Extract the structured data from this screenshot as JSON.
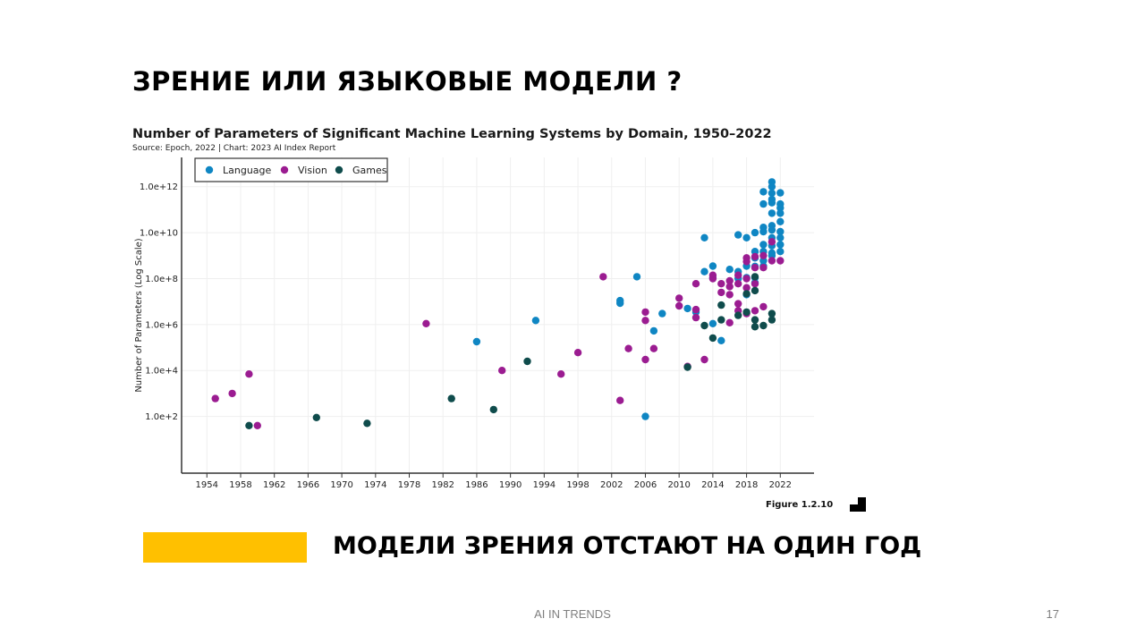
{
  "slide": {
    "title": "ЗРЕНИЕ ИЛИ ЯЗЫКОВЫЕ МОДЕЛИ ?",
    "subtitle": "МОДЕЛИ ЗРЕНИЯ ОТСТАЮТ НА ОДИН ГОД",
    "footer": "AI IN TRENDS",
    "page_number": "17",
    "accent_color": "#FFC000"
  },
  "chart_data": {
    "type": "scatter",
    "title": "Number of Parameters of Significant Machine Learning Systems by Domain, 1950–2022",
    "source": "Source: Epoch, 2022 | Chart: 2023 AI Index Report",
    "ylabel": "Number of Parameters (Log Scale)",
    "xlabel": "",
    "figure_label": "Figure 1.2.10",
    "y_scale": "log",
    "xlim": [
      1951,
      2026
    ],
    "ylim": [
      1,
      10000000000000
    ],
    "grid": true,
    "legend_position": "top-left",
    "x_ticks": [
      1954,
      1958,
      1962,
      1966,
      1970,
      1974,
      1978,
      1982,
      1986,
      1990,
      1994,
      1998,
      2002,
      2006,
      2010,
      2014,
      2018,
      2022
    ],
    "y_ticks": [
      {
        "value": 100,
        "label": "1.0e+2"
      },
      {
        "value": 10000,
        "label": "1.0e+4"
      },
      {
        "value": 1000000,
        "label": "1.0e+6"
      },
      {
        "value": 100000000,
        "label": "1.0e+8"
      },
      {
        "value": 10000000000,
        "label": "1.0e+10"
      },
      {
        "value": 1000000000000,
        "label": "1.0e+12"
      }
    ],
    "series": [
      {
        "name": "Language",
        "color": "#0F86C3",
        "points": [
          {
            "x": 1986,
            "y": 180000
          },
          {
            "x": 1993,
            "y": 1500000
          },
          {
            "x": 2003,
            "y": 11000000
          },
          {
            "x": 2003,
            "y": 8500000
          },
          {
            "x": 2005,
            "y": 120000000
          },
          {
            "x": 2006,
            "y": 100
          },
          {
            "x": 2007,
            "y": 530000
          },
          {
            "x": 2008,
            "y": 3000000
          },
          {
            "x": 2011,
            "y": 5000000
          },
          {
            "x": 2012,
            "y": 3500000
          },
          {
            "x": 2013,
            "y": 6000000000
          },
          {
            "x": 2013,
            "y": 200000000
          },
          {
            "x": 2014,
            "y": 110000000
          },
          {
            "x": 2014,
            "y": 350000000
          },
          {
            "x": 2014,
            "y": 1100000
          },
          {
            "x": 2015,
            "y": 200000
          },
          {
            "x": 2016,
            "y": 250000000
          },
          {
            "x": 2017,
            "y": 8000000000
          },
          {
            "x": 2017,
            "y": 200000000
          },
          {
            "x": 2017,
            "y": 100000000
          },
          {
            "x": 2018,
            "y": 6000000000
          },
          {
            "x": 2018,
            "y": 350000000
          },
          {
            "x": 2018,
            "y": 110000000
          },
          {
            "x": 2018,
            "y": 20000000
          },
          {
            "x": 2019,
            "y": 10000000000
          },
          {
            "x": 2019,
            "y": 1500000000
          },
          {
            "x": 2019,
            "y": 800000000
          },
          {
            "x": 2019,
            "y": 340000000
          },
          {
            "x": 2019,
            "y": 110000000
          },
          {
            "x": 2019,
            "y": 66000000
          },
          {
            "x": 2020,
            "y": 600000000000
          },
          {
            "x": 2020,
            "y": 175000000000
          },
          {
            "x": 2020,
            "y": 17000000000
          },
          {
            "x": 2020,
            "y": 11000000000
          },
          {
            "x": 2020,
            "y": 3000000000
          },
          {
            "x": 2020,
            "y": 1500000000
          },
          {
            "x": 2020,
            "y": 600000000
          },
          {
            "x": 2020,
            "y": 350000000
          },
          {
            "x": 2021,
            "y": 1600000000000
          },
          {
            "x": 2021,
            "y": 1000000000000
          },
          {
            "x": 2021,
            "y": 530000000000
          },
          {
            "x": 2021,
            "y": 280000000000
          },
          {
            "x": 2021,
            "y": 200000000000
          },
          {
            "x": 2021,
            "y": 70000000000
          },
          {
            "x": 2021,
            "y": 20000000000
          },
          {
            "x": 2021,
            "y": 13000000000
          },
          {
            "x": 2021,
            "y": 6000000000
          },
          {
            "x": 2021,
            "y": 2700000000
          },
          {
            "x": 2021,
            "y": 1300000000
          },
          {
            "x": 2021,
            "y": 1000000000
          },
          {
            "x": 2022,
            "y": 540000000000
          },
          {
            "x": 2022,
            "y": 175000000000
          },
          {
            "x": 2022,
            "y": 120000000000
          },
          {
            "x": 2022,
            "y": 70000000000
          },
          {
            "x": 2022,
            "y": 30000000000
          },
          {
            "x": 2022,
            "y": 11000000000
          },
          {
            "x": 2022,
            "y": 6000000000
          },
          {
            "x": 2022,
            "y": 3000000000
          },
          {
            "x": 2022,
            "y": 1500000000
          }
        ]
      },
      {
        "name": "Vision",
        "color": "#9B1C91",
        "points": [
          {
            "x": 1955,
            "y": 600
          },
          {
            "x": 1957,
            "y": 1000
          },
          {
            "x": 1959,
            "y": 7000
          },
          {
            "x": 1960,
            "y": 40
          },
          {
            "x": 1980,
            "y": 1100000
          },
          {
            "x": 1989,
            "y": 10000
          },
          {
            "x": 1996,
            "y": 7000
          },
          {
            "x": 1998,
            "y": 60000
          },
          {
            "x": 2001,
            "y": 120000000
          },
          {
            "x": 2003,
            "y": 500
          },
          {
            "x": 2004,
            "y": 90000
          },
          {
            "x": 2006,
            "y": 3500000
          },
          {
            "x": 2006,
            "y": 1500000
          },
          {
            "x": 2006,
            "y": 30000
          },
          {
            "x": 2007,
            "y": 90000
          },
          {
            "x": 2010,
            "y": 14000000
          },
          {
            "x": 2010,
            "y": 6500000
          },
          {
            "x": 2011,
            "y": 15000
          },
          {
            "x": 2012,
            "y": 60000000
          },
          {
            "x": 2012,
            "y": 4500000
          },
          {
            "x": 2012,
            "y": 2000000
          },
          {
            "x": 2013,
            "y": 30000
          },
          {
            "x": 2014,
            "y": 140000000
          },
          {
            "x": 2014,
            "y": 100000000
          },
          {
            "x": 2015,
            "y": 60000000
          },
          {
            "x": 2015,
            "y": 25000000
          },
          {
            "x": 2016,
            "y": 80000000
          },
          {
            "x": 2016,
            "y": 45000000
          },
          {
            "x": 2016,
            "y": 20000000
          },
          {
            "x": 2016,
            "y": 1200000
          },
          {
            "x": 2017,
            "y": 140000000
          },
          {
            "x": 2017,
            "y": 60000000
          },
          {
            "x": 2017,
            "y": 8000000
          },
          {
            "x": 2017,
            "y": 4000000
          },
          {
            "x": 2018,
            "y": 800000000
          },
          {
            "x": 2018,
            "y": 550000000
          },
          {
            "x": 2018,
            "y": 100000000
          },
          {
            "x": 2018,
            "y": 40000000
          },
          {
            "x": 2018,
            "y": 3000000
          },
          {
            "x": 2019,
            "y": 900000000
          },
          {
            "x": 2019,
            "y": 300000000
          },
          {
            "x": 2019,
            "y": 60000000
          },
          {
            "x": 2019,
            "y": 4000000
          },
          {
            "x": 2020,
            "y": 1000000000
          },
          {
            "x": 2020,
            "y": 300000000
          },
          {
            "x": 2020,
            "y": 6000000
          },
          {
            "x": 2021,
            "y": 4000000000
          },
          {
            "x": 2021,
            "y": 600000000
          },
          {
            "x": 2022,
            "y": 600000000
          }
        ]
      },
      {
        "name": "Games",
        "color": "#0F4C4C",
        "points": [
          {
            "x": 1959,
            "y": 40
          },
          {
            "x": 1967,
            "y": 90
          },
          {
            "x": 1973,
            "y": 50
          },
          {
            "x": 1983,
            "y": 600
          },
          {
            "x": 1988,
            "y": 200
          },
          {
            "x": 1992,
            "y": 25000
          },
          {
            "x": 2011,
            "y": 14000
          },
          {
            "x": 2013,
            "y": 900000
          },
          {
            "x": 2014,
            "y": 260000
          },
          {
            "x": 2015,
            "y": 7000000
          },
          {
            "x": 2015,
            "y": 1600000
          },
          {
            "x": 2017,
            "y": 2500000
          },
          {
            "x": 2018,
            "y": 22000000
          },
          {
            "x": 2018,
            "y": 3500000
          },
          {
            "x": 2019,
            "y": 30000000
          },
          {
            "x": 2019,
            "y": 120000000
          },
          {
            "x": 2019,
            "y": 1600000
          },
          {
            "x": 2019,
            "y": 800000
          },
          {
            "x": 2020,
            "y": 900000
          },
          {
            "x": 2021,
            "y": 3000000
          },
          {
            "x": 2021,
            "y": 1600000
          }
        ]
      }
    ]
  }
}
